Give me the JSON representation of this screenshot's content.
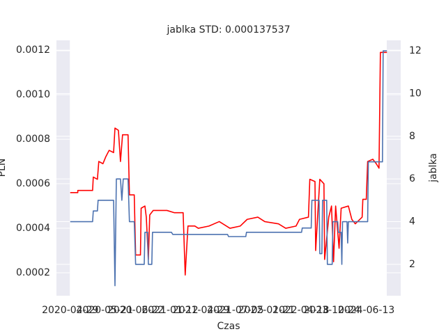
{
  "chart_data": {
    "type": "line",
    "title": "jablka STD: 0.000137537",
    "x_label": "Czas",
    "y_label": "PLN",
    "y2_label": "jablka",
    "grid": true,
    "xlim": [
      -4,
      96
    ],
    "ylim": [
      9.7e-05,
      0.001244
    ],
    "y2lim": [
      0.53,
      12.49
    ],
    "xticks": [
      {
        "value": 0,
        "label": "2020-04-29"
      },
      {
        "value": 10,
        "label": "2020-05-21"
      },
      {
        "value": 19,
        "label": "2020-06-22"
      },
      {
        "value": 29,
        "label": "2021-01-12"
      },
      {
        "value": 38,
        "label": "2021-04-29"
      },
      {
        "value": 48,
        "label": "2021-07-05"
      },
      {
        "value": 57,
        "label": "2022-01-21"
      },
      {
        "value": 67,
        "label": "2022-04-18"
      },
      {
        "value": 76,
        "label": "2023-10-24"
      },
      {
        "value": 86,
        "label": "2024-06-13"
      }
    ],
    "yticks": [
      0.0002,
      0.0004,
      0.0006,
      0.0008,
      {
        "value": 0.001,
        "label": "0.0010"
      },
      0.0012
    ],
    "y2ticks": [
      2,
      4,
      6,
      8,
      10,
      12
    ],
    "series": [
      {
        "name": "PLN",
        "color": "#ff0000",
        "x": [
          0,
          2.2,
          2.2,
          6.5,
          6.7,
          7.9,
          8.3,
          9.5,
          10.3,
          11.3,
          12.6,
          13.0,
          14.0,
          14.6,
          15.2,
          16.8,
          17.2,
          18.6,
          19.0,
          20.4,
          20.6,
          21.7,
          22.1,
          22.7,
          23.1,
          24.1,
          28.1,
          30.2,
          32.8,
          33.4,
          34.2,
          36.2,
          37.2,
          40.3,
          43.3,
          46.4,
          49.4,
          51.4,
          54.5,
          56.5,
          60.5,
          62.6,
          65.6,
          66.6,
          69.2,
          69.6,
          71.1,
          71.3,
          72.5,
          73.7,
          73.9,
          75.1,
          75.9,
          76.5,
          77.1,
          78.1,
          78.7,
          80.8,
          81.8,
          82.8,
          84.8,
          85.0,
          86.0,
          86.4,
          87.9,
          88.9,
          89.7,
          90.1,
          92
        ],
        "values": [
          0.00056,
          0.00056,
          0.00057,
          0.00057,
          0.00063,
          0.00062,
          0.0007,
          0.00069,
          0.00072,
          0.00075,
          0.00074,
          0.00085,
          0.00084,
          0.0007,
          0.00082,
          0.00082,
          0.00055,
          0.00055,
          0.00028,
          0.00028,
          0.00049,
          0.0005,
          0.00045,
          0.00026,
          0.00046,
          0.00048,
          0.00048,
          0.00047,
          0.00047,
          0.00019,
          0.00041,
          0.00041,
          0.0004,
          0.00041,
          0.00043,
          0.0004,
          0.00041,
          0.00044,
          0.00045,
          0.00043,
          0.00042,
          0.0004,
          0.00041,
          0.00044,
          0.00045,
          0.00062,
          0.00061,
          0.0003,
          0.00062,
          0.0006,
          0.00026,
          0.00045,
          0.0005,
          0.00025,
          0.0005,
          0.00031,
          0.00049,
          0.0005,
          0.00044,
          0.00042,
          0.00045,
          0.00053,
          0.00053,
          0.0007,
          0.00071,
          0.00069,
          0.00067,
          0.00119,
          0.00119
        ]
      },
      {
        "name": "jablka",
        "color": "#4c72b0",
        "axis": "y2",
        "x": [
          0,
          6.5,
          6.7,
          7.9,
          8.1,
          12.6,
          13,
          13.4,
          14.6,
          15,
          15.4,
          16.8,
          17.2,
          18.6,
          19,
          21.5,
          21.7,
          22.5,
          22.7,
          23.7,
          23.9,
          29.4,
          29.8,
          45.7,
          46,
          51,
          51.2,
          67.2,
          67.4,
          70,
          70.2,
          72.3,
          72.5,
          73.1,
          73.3,
          74.5,
          74.7,
          76.1,
          76.3,
          77.7,
          77.9,
          78.7,
          78.9,
          79.1,
          80.4,
          80.6,
          80.8,
          86.4,
          86.6,
          90.7,
          90.9,
          92
        ],
        "values": [
          4,
          4,
          4.5,
          4.5,
          5,
          5,
          1,
          6,
          6,
          5,
          6,
          6,
          4,
          4,
          2,
          2,
          3.5,
          3.5,
          2,
          2,
          3.5,
          3.5,
          3.4,
          3.4,
          3.3,
          3.3,
          3.5,
          3.5,
          3.7,
          3.7,
          5,
          5,
          2.5,
          2.5,
          5,
          5,
          2,
          2,
          4,
          4,
          3.5,
          3.5,
          2,
          4,
          4,
          3,
          4,
          4,
          6.8,
          6.8,
          12,
          12
        ]
      }
    ]
  }
}
